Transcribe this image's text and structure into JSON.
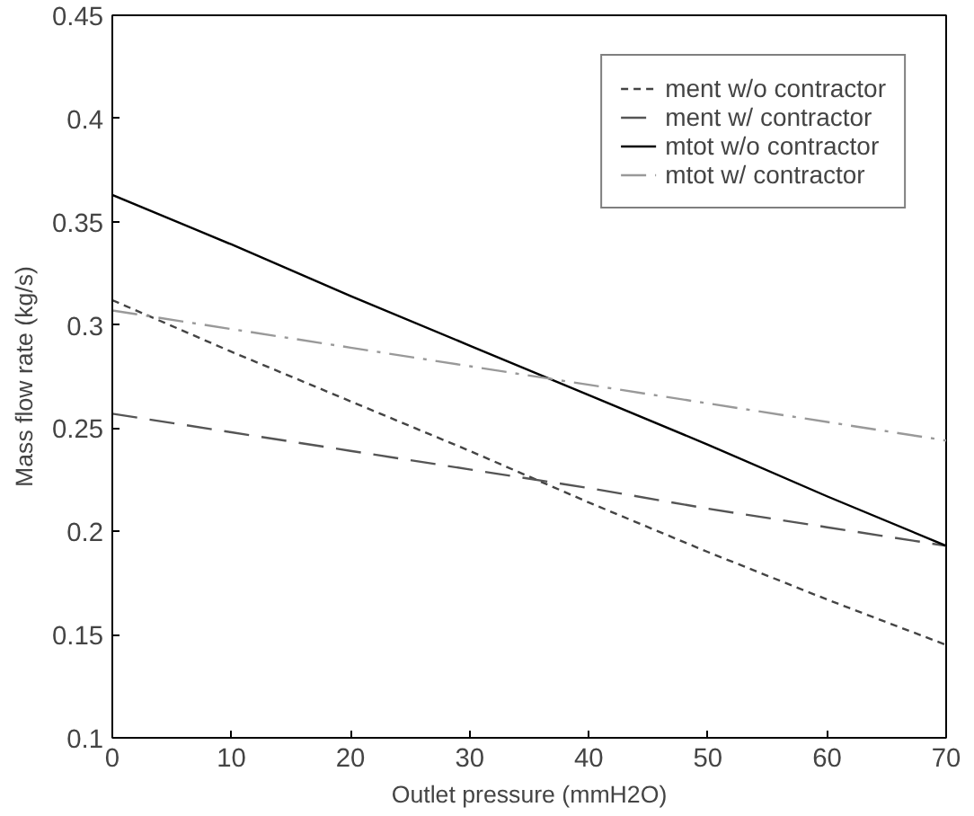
{
  "chart_data": {
    "type": "line",
    "xlabel": "Outlet pressure (mmH2O)",
    "ylabel": "Mass flow rate (kg/s)",
    "x": [
      0,
      10,
      20,
      30,
      40,
      50,
      60,
      70
    ],
    "series": [
      {
        "name": "ment w/o contractor",
        "color": "#444444",
        "line_style": "dashed",
        "values": [
          0.312,
          0.287,
          0.263,
          0.239,
          0.214,
          0.19,
          0.167,
          0.145
        ]
      },
      {
        "name": "ment w/ contractor",
        "color": "#555555",
        "line_style": "longdash",
        "values": [
          0.257,
          0.248,
          0.239,
          0.23,
          0.221,
          0.211,
          0.202,
          0.193
        ]
      },
      {
        "name": "mtot w/o contractor",
        "color": "#000000",
        "line_style": "solid",
        "values": [
          0.363,
          0.339,
          0.314,
          0.29,
          0.266,
          0.242,
          0.217,
          0.193
        ]
      },
      {
        "name": "mtot w/ contractor",
        "color": "#999999",
        "line_style": "dashdot",
        "values": [
          0.307,
          0.298,
          0.289,
          0.28,
          0.271,
          0.262,
          0.253,
          0.244
        ]
      }
    ],
    "xlim": [
      0,
      70
    ],
    "ylim": [
      0.1,
      0.45
    ],
    "xticks": [
      0,
      10,
      20,
      30,
      40,
      50,
      60,
      70
    ],
    "yticks": [
      0.1,
      0.15,
      0.2,
      0.25,
      0.3,
      0.35,
      0.4,
      0.45
    ],
    "grid": false,
    "legend": "top right",
    "marker": "none"
  }
}
